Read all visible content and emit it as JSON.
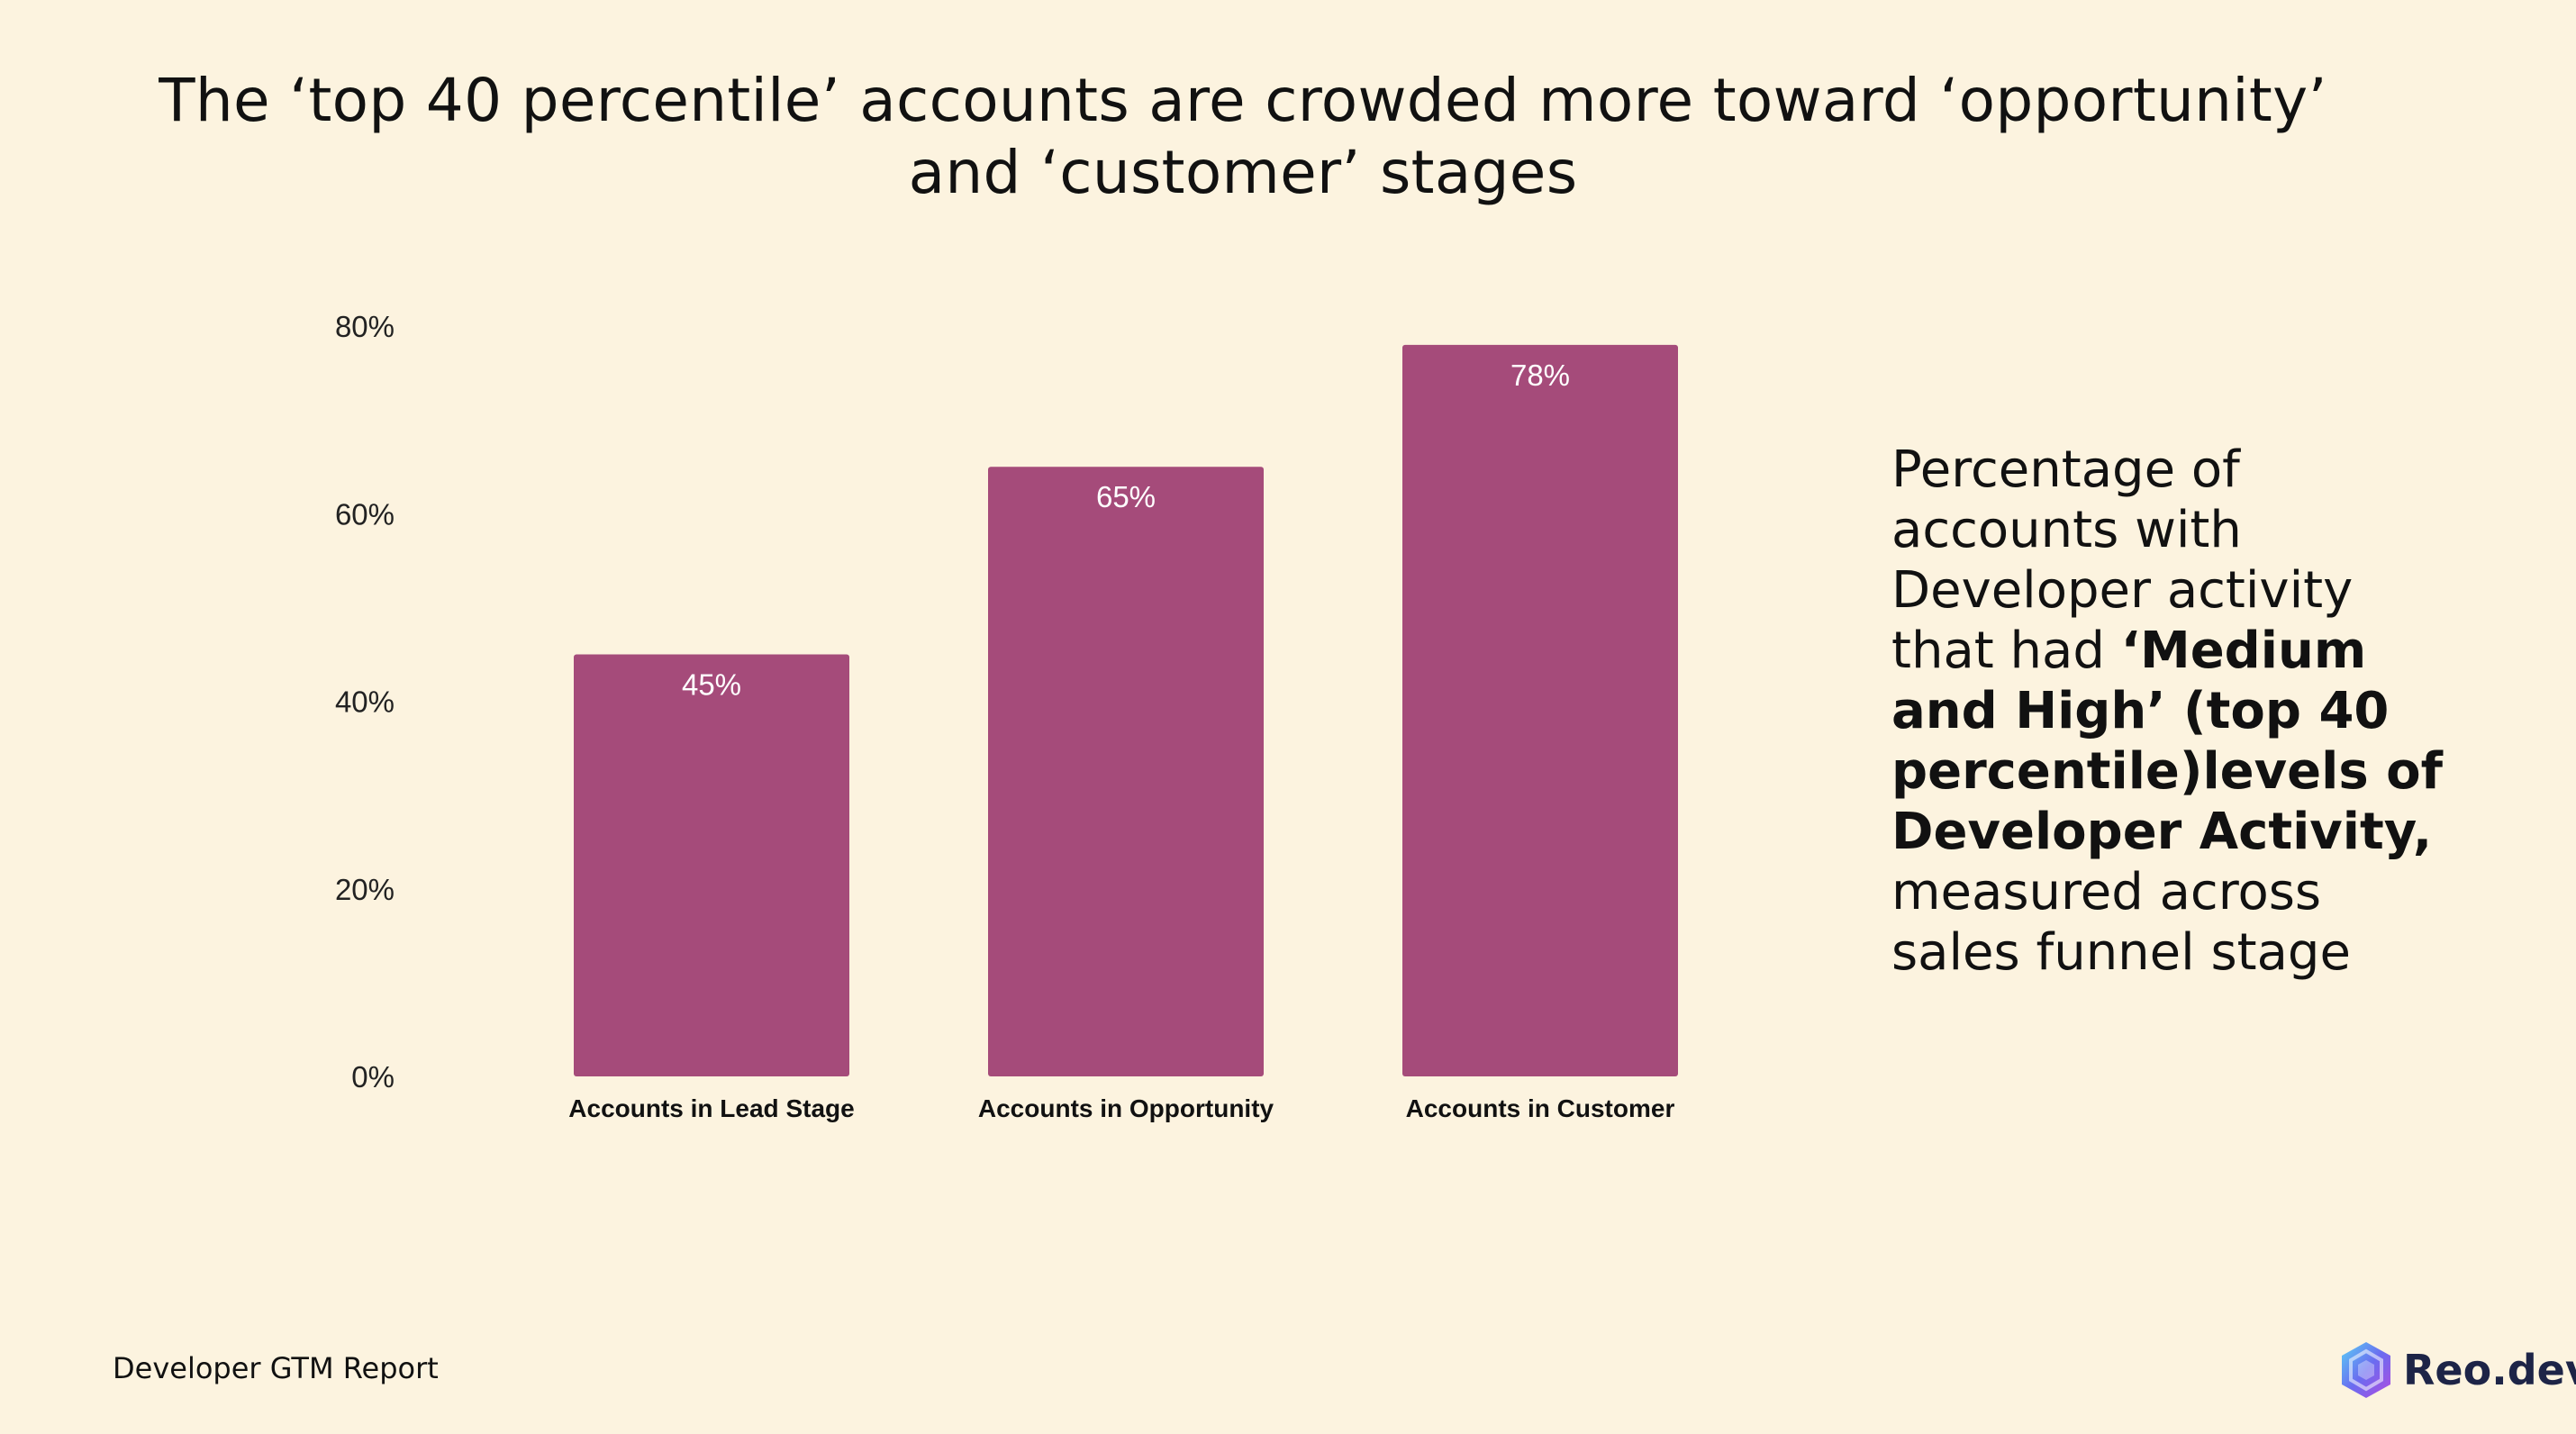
{
  "title": "The ‘top 40 percentile’ accounts are crowded more toward ‘opportunity’ and ‘customer’ stages",
  "side_note": {
    "part1": "Percentage of accounts with Developer activity that had ",
    "bold": "‘Medium and High’ (top 40 percentile)levels of Developer Activity,",
    "part2": " measured across sales funnel stage"
  },
  "footer": "Developer GTM Report",
  "brand": {
    "name": "Reo.dev",
    "icon": "reo-hexagon-logo-icon"
  },
  "colors": {
    "background": "#fcf3df",
    "bar": "#a54b7a",
    "bar_label": "#ffffff"
  },
  "chart_data": {
    "type": "bar",
    "categories": [
      "Accounts in Lead Stage",
      "Accounts in Opportunity",
      "Accounts in Customer"
    ],
    "values": [
      45,
      65,
      78
    ],
    "data_labels": [
      "45%",
      "65%",
      "78%"
    ],
    "ylim": [
      0,
      80
    ],
    "yticks": [
      0,
      20,
      40,
      60,
      80
    ],
    "ytick_labels": [
      "0%",
      "20%",
      "40%",
      "60%",
      "80%"
    ],
    "xlabel": "",
    "ylabel": "",
    "grid": false,
    "legend": "none"
  }
}
